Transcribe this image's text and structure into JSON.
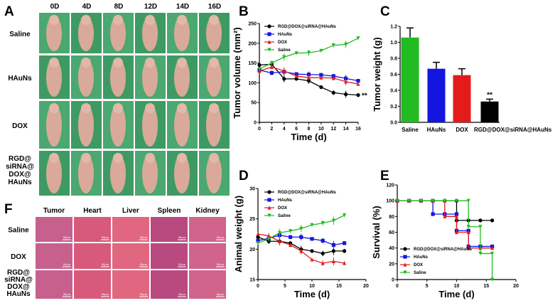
{
  "panel_letters": {
    "A": "A",
    "B": "B",
    "C": "C",
    "D": "D",
    "E": "E",
    "F": "F"
  },
  "panelA": {
    "days": [
      "0D",
      "4D",
      "8D",
      "12D",
      "14D",
      "16D"
    ],
    "groups": [
      "Saline",
      "HAuNs",
      "DOX",
      "RGD@\nsiRNA@\nDOX@\nHAuNs"
    ]
  },
  "panelF": {
    "organs": [
      "Tumor",
      "Heart",
      "Liver",
      "Spleen",
      "Kidney"
    ],
    "groups": [
      "Saline",
      "DOX",
      "RGD@\nsiRNA@\nDOX@\nHAuNs"
    ],
    "scale_bar": "50μm"
  },
  "colors": {
    "RGD@DOX@siRNA@HAuNs": "#000000",
    "HAuNs": "#1515e0",
    "DOX": "#e51b1b",
    "Saline": "#22bb22"
  },
  "chart_data": [
    {
      "id": "B",
      "type": "line",
      "xlabel": "Time (d)",
      "ylabel": "Tumor volume (mm²)",
      "xlim": [
        0,
        16
      ],
      "ylim": [
        0,
        250
      ],
      "xticks": [
        0,
        2,
        4,
        6,
        8,
        10,
        12,
        14,
        16
      ],
      "yticks": [
        0,
        50,
        100,
        150,
        200,
        250
      ],
      "legend": "top-left",
      "annotation": "**",
      "x": [
        0,
        2,
        4,
        6,
        8,
        10,
        12,
        14,
        16
      ],
      "series": [
        {
          "name": "RGD@DOX@siRNA@HAuNs",
          "marker": "circle",
          "values": [
            145,
            147,
            110,
            110,
            105,
            89,
            75,
            71,
            69
          ]
        },
        {
          "name": "HAuNs",
          "marker": "square",
          "values": [
            132,
            125,
            128,
            122,
            121,
            120,
            117,
            111,
            105
          ]
        },
        {
          "name": "DOX",
          "marker": "triangle",
          "values": [
            130,
            140,
            130,
            117,
            113,
            113,
            112,
            103,
            97
          ]
        },
        {
          "name": "Saline",
          "marker": "triangle-down",
          "values": [
            135,
            150,
            165,
            175,
            176,
            181,
            195,
            197,
            213
          ]
        }
      ]
    },
    {
      "id": "C",
      "type": "bar",
      "ylabel": "Tumor weight (g)",
      "ylim": [
        0,
        1.2
      ],
      "yticks": [
        0,
        0.2,
        0.4,
        0.6,
        0.8,
        1.0,
        1.2
      ],
      "categories": [
        "Saline",
        "HAuNs",
        "DOX",
        "RGD@DOX@siRNA@HAuNs"
      ],
      "values": [
        1.06,
        0.67,
        0.59,
        0.26
      ],
      "errors": [
        0.12,
        0.08,
        0.08,
        0.03
      ],
      "annotations": [
        "",
        "",
        "",
        "**"
      ]
    },
    {
      "id": "D",
      "type": "line",
      "xlabel": "Time (d)",
      "ylabel": "Animal weight (g)",
      "xlim": [
        0,
        20
      ],
      "ylim": [
        15,
        30
      ],
      "xticks": [
        0,
        5,
        10,
        15,
        20
      ],
      "yticks": [
        15,
        20,
        25,
        30
      ],
      "legend": "top-left",
      "x": [
        0,
        2,
        4,
        6,
        8,
        10,
        12,
        14,
        16
      ],
      "series": [
        {
          "name": "RGD@DOX@siRNA@HAuNs",
          "marker": "circle",
          "values": [
            22,
            21.3,
            21.3,
            21,
            20,
            19.7,
            19.3,
            19.7,
            19.7
          ]
        },
        {
          "name": "HAuNs",
          "marker": "square",
          "values": [
            21.4,
            21.8,
            22.3,
            22,
            22,
            21.7,
            21.4,
            20.7,
            21
          ]
        },
        {
          "name": "DOX",
          "marker": "triangle",
          "values": [
            22.5,
            22.2,
            21.3,
            20.7,
            19.7,
            18.3,
            17.7,
            18,
            17.7
          ]
        },
        {
          "name": "Saline",
          "marker": "triangle-down",
          "values": [
            21,
            21.7,
            22.7,
            23,
            23.4,
            24,
            24.3,
            24.7,
            25.6
          ]
        }
      ]
    },
    {
      "id": "E",
      "type": "line",
      "step": true,
      "xlabel": "Time (d)",
      "ylabel": "Survival (%)",
      "xlim": [
        0,
        20
      ],
      "ylim": [
        0,
        120
      ],
      "xticks": [
        0,
        5,
        10,
        15,
        20
      ],
      "yticks": [
        0,
        20,
        40,
        60,
        80,
        100,
        120
      ],
      "legend": "bottom-left",
      "series": [
        {
          "name": "RGD@DOX@siRNA@HAuNs",
          "marker": "circle",
          "points": [
            [
              0,
              100
            ],
            [
              2,
              100
            ],
            [
              4,
              100
            ],
            [
              6,
              100
            ],
            [
              8,
              100
            ],
            [
              10,
              100
            ],
            [
              10,
              75
            ],
            [
              12,
              75
            ],
            [
              14,
              75
            ],
            [
              16,
              75
            ]
          ]
        },
        {
          "name": "HAuNs",
          "marker": "square",
          "points": [
            [
              0,
              100
            ],
            [
              2,
              100
            ],
            [
              4,
              100
            ],
            [
              6,
              100
            ],
            [
              6,
              83
            ],
            [
              8,
              83
            ],
            [
              10,
              83
            ],
            [
              10,
              62
            ],
            [
              12,
              62
            ],
            [
              12,
              42
            ],
            [
              14,
              42
            ],
            [
              16,
              42
            ]
          ]
        },
        {
          "name": "DOX",
          "marker": "triangle",
          "points": [
            [
              0,
              100
            ],
            [
              2,
              100
            ],
            [
              4,
              100
            ],
            [
              6,
              100
            ],
            [
              8,
              100
            ],
            [
              8,
              80
            ],
            [
              10,
              80
            ],
            [
              10,
              60
            ],
            [
              12,
              60
            ],
            [
              12,
              40
            ],
            [
              14,
              40
            ],
            [
              16,
              40
            ]
          ]
        },
        {
          "name": "Saline",
          "marker": "triangle-down",
          "points": [
            [
              0,
              100
            ],
            [
              2,
              100
            ],
            [
              4,
              100
            ],
            [
              6,
              100
            ],
            [
              8,
              100
            ],
            [
              10,
              100
            ],
            [
              12,
              100
            ],
            [
              12,
              67
            ],
            [
              14,
              67
            ],
            [
              14,
              33
            ],
            [
              16,
              33
            ],
            [
              16,
              0
            ]
          ]
        }
      ]
    }
  ]
}
